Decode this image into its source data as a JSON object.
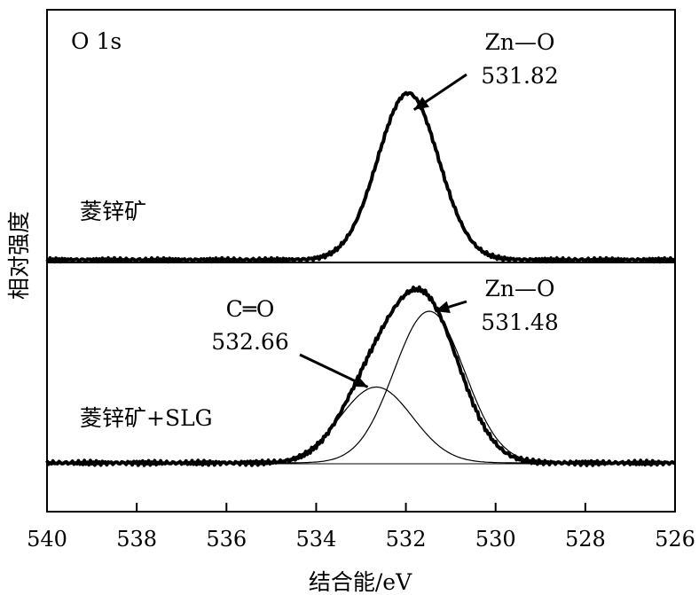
{
  "chart_data": {
    "type": "line",
    "xlabel": "结合能/eV",
    "ylabel": "相对强度",
    "xlim": [
      540,
      526
    ],
    "x_ticks": [
      "540",
      "538",
      "536",
      "534",
      "532",
      "530",
      "528",
      "526"
    ],
    "x_tick_values": [
      540,
      538,
      536,
      534,
      532,
      530,
      528,
      526
    ],
    "panel_label": "O 1s",
    "grid": false,
    "legend": "none",
    "panels": [
      {
        "sample_label": "菱锌矿",
        "series": [
          {
            "role": "envelope",
            "peak_center": 531.95,
            "peak_height": 0.8,
            "fwhm": 1.6,
            "baseline": 0
          }
        ],
        "annotations": [
          {
            "species": "Zn—O",
            "value": "531.82",
            "target_x": 531.82,
            "target_y": 0.72
          }
        ]
      },
      {
        "sample_label": "菱锌矿+SLG",
        "series": [
          {
            "role": "envelope",
            "components": [
              {
                "center": 532.75,
                "height": 0.28,
                "fwhm": 1.7
              },
              {
                "center": 531.55,
                "height": 0.6,
                "fwhm": 1.8
              }
            ],
            "baseline": 0
          },
          {
            "role": "component",
            "label": "C═O",
            "peak_center": 532.66,
            "peak_height": 0.3,
            "fwhm": 1.9
          },
          {
            "role": "component",
            "label": "Zn—O",
            "peak_center": 531.48,
            "peak_height": 0.6,
            "fwhm": 1.85
          }
        ],
        "annotations": [
          {
            "species": "C═O",
            "value": "532.66",
            "target_x": 532.85,
            "target_y": 0.3
          },
          {
            "species": "Zn—O",
            "value": "531.48",
            "target_x": 531.35,
            "target_y": 0.6
          }
        ]
      }
    ]
  }
}
